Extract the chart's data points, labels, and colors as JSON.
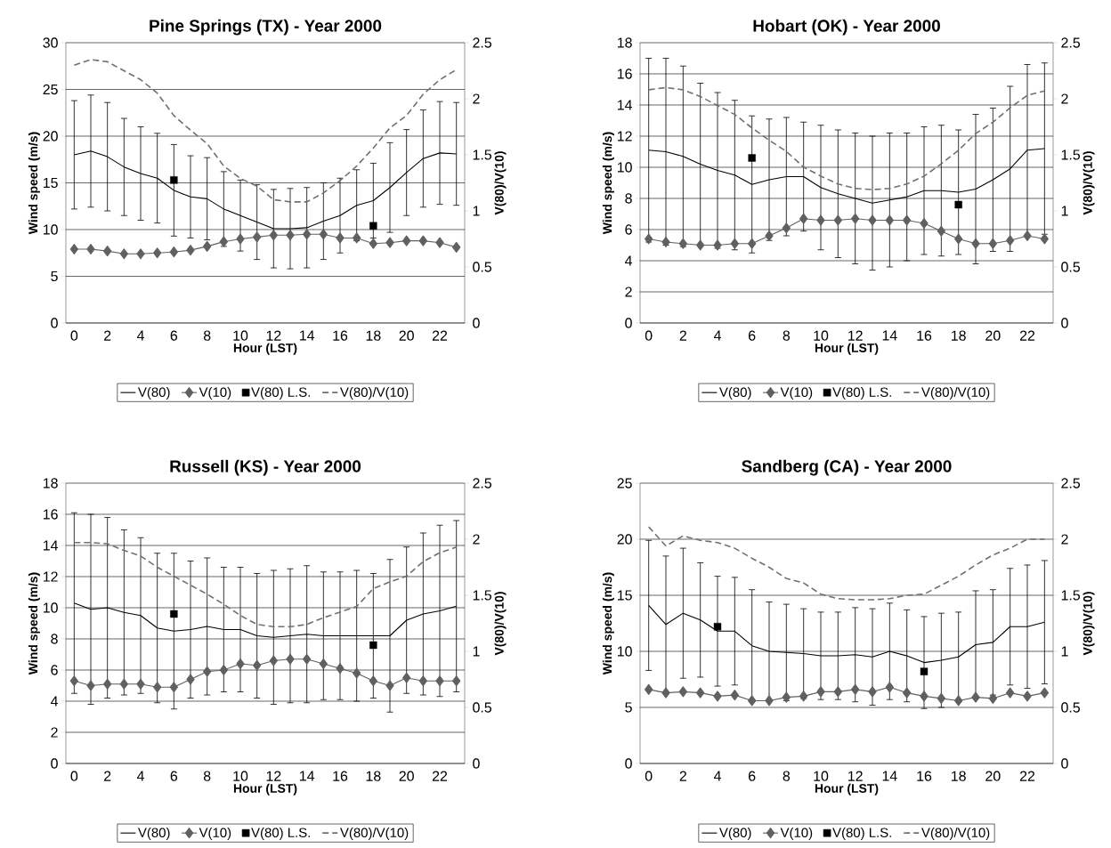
{
  "chart_data": [
    {
      "type": "line",
      "title": "Pine Springs (TX) - Year 2000",
      "xlabel": "Hour (LST)",
      "ylabel": "Wind speed (m/s)",
      "y2label": "V(80)/V(10)",
      "categories": [
        "0",
        null,
        "2",
        null,
        "4",
        null,
        "6",
        null,
        "8",
        null,
        "10",
        null,
        "12",
        null,
        "14",
        null,
        "16",
        null,
        "18",
        null,
        "20",
        null,
        "22",
        null
      ],
      "ylim": [
        0,
        30
      ],
      "yticks": [
        0,
        5,
        10,
        15,
        20,
        25,
        30
      ],
      "y2lim": [
        0,
        2.5
      ],
      "y2ticks": [
        0,
        0.5,
        1,
        1.5,
        2,
        2.5
      ],
      "grid": "y",
      "legend": "bottom",
      "series": [
        {
          "name": "V(80)",
          "type": "line",
          "color": "#000000",
          "marker": "none",
          "line_style": "solid",
          "values": [
            18.0,
            18.4,
            17.8,
            16.7,
            16.0,
            15.5,
            14.2,
            13.5,
            13.3,
            12.2,
            11.5,
            10.8,
            10.1,
            10.1,
            10.2,
            10.9,
            11.5,
            12.6,
            13.1,
            14.5,
            16.1,
            17.6,
            18.2,
            18.1
          ],
          "errors": [
            5.8,
            6.0,
            5.8,
            5.2,
            5.0,
            4.8,
            4.9,
            4.4,
            4.4,
            4.0,
            3.8,
            4.0,
            4.2,
            4.3,
            4.3,
            4.1,
            4.0,
            3.8,
            4.0,
            4.8,
            4.6,
            5.2,
            5.5,
            5.5
          ]
        },
        {
          "name": "V(10)",
          "type": "line",
          "color": "#606060",
          "marker": "diamond",
          "line_style": "solid",
          "values": [
            7.9,
            7.9,
            7.7,
            7.4,
            7.4,
            7.5,
            7.6,
            7.8,
            8.2,
            8.7,
            9.0,
            9.2,
            9.4,
            9.4,
            9.5,
            9.5,
            9.1,
            9.1,
            8.5,
            8.6,
            8.8,
            8.8,
            8.6,
            8.1
          ]
        },
        {
          "name": "V(80) L.S.",
          "type": "scatter",
          "color": "#000000",
          "marker": "square",
          "values": [
            null,
            null,
            null,
            null,
            null,
            null,
            15.3,
            null,
            null,
            null,
            null,
            null,
            null,
            null,
            null,
            null,
            null,
            null,
            10.4,
            null,
            null,
            null,
            null,
            null
          ]
        },
        {
          "name": "V(80)/V(10)",
          "type": "line",
          "axis": "y2",
          "color": "#707070",
          "marker": "none",
          "line_style": "dashed",
          "values": [
            2.3,
            2.35,
            2.33,
            2.25,
            2.17,
            2.05,
            1.85,
            1.72,
            1.6,
            1.4,
            1.29,
            1.22,
            1.1,
            1.08,
            1.08,
            1.16,
            1.27,
            1.4,
            1.56,
            1.74,
            1.85,
            2.04,
            2.17,
            2.26
          ]
        }
      ]
    },
    {
      "type": "line",
      "title": "Hobart (OK) - Year 2000",
      "xlabel": "Hour (LST)",
      "ylabel": "Wind speed (m/s)",
      "y2label": "V(80)/V(10)",
      "categories": [
        "0",
        null,
        "2",
        null,
        "4",
        null,
        "6",
        null,
        "8",
        null,
        "10",
        null,
        "12",
        null,
        "14",
        null,
        "16",
        null,
        "18",
        null,
        "20",
        null,
        "22",
        null
      ],
      "ylim": [
        0,
        18
      ],
      "yticks": [
        0,
        2,
        4,
        6,
        8,
        10,
        12,
        14,
        16,
        18
      ],
      "y2lim": [
        0,
        2.5
      ],
      "y2ticks": [
        0,
        0.5,
        1,
        1.5,
        2,
        2.5
      ],
      "grid": "y",
      "legend": "bottom",
      "series": [
        {
          "name": "V(80)",
          "type": "line",
          "color": "#000000",
          "marker": "none",
          "line_style": "solid",
          "values": [
            11.1,
            11.0,
            10.7,
            10.2,
            9.8,
            9.5,
            8.9,
            9.2,
            9.4,
            9.4,
            8.7,
            8.3,
            8.0,
            7.7,
            7.9,
            8.1,
            8.5,
            8.5,
            8.4,
            8.6,
            9.2,
            9.9,
            11.1,
            11.2
          ],
          "errors": [
            5.9,
            6.0,
            5.8,
            5.2,
            5.0,
            4.8,
            4.4,
            3.9,
            3.8,
            3.5,
            4.0,
            4.1,
            4.2,
            4.3,
            4.3,
            4.1,
            4.1,
            4.2,
            4.0,
            4.8,
            4.6,
            5.3,
            5.5,
            5.5
          ]
        },
        {
          "name": "V(10)",
          "type": "line",
          "color": "#606060",
          "marker": "diamond",
          "line_style": "solid",
          "values": [
            5.4,
            5.2,
            5.1,
            5.0,
            5.0,
            5.1,
            5.1,
            5.6,
            6.1,
            6.7,
            6.6,
            6.6,
            6.7,
            6.6,
            6.6,
            6.6,
            6.4,
            5.9,
            5.4,
            5.1,
            5.1,
            5.3,
            5.6,
            5.4
          ]
        },
        {
          "name": "V(80) L.S.",
          "type": "scatter",
          "color": "#000000",
          "marker": "square",
          "values": [
            null,
            null,
            null,
            null,
            null,
            null,
            10.6,
            null,
            null,
            null,
            null,
            null,
            null,
            null,
            null,
            null,
            null,
            null,
            7.6,
            null,
            null,
            null,
            null,
            null
          ]
        },
        {
          "name": "V(80)/V(10)",
          "type": "line",
          "axis": "y2",
          "color": "#707070",
          "marker": "none",
          "line_style": "dashed",
          "values": [
            2.08,
            2.1,
            2.08,
            2.02,
            1.94,
            1.86,
            1.74,
            1.63,
            1.53,
            1.39,
            1.31,
            1.24,
            1.2,
            1.19,
            1.2,
            1.24,
            1.31,
            1.42,
            1.54,
            1.69,
            1.79,
            1.92,
            2.03,
            2.07
          ]
        }
      ]
    },
    {
      "type": "line",
      "title": "Russell (KS) - Year 2000",
      "xlabel": "Hour (LST)",
      "ylabel": "Wind speed (m/s)",
      "y2label": "V(80)/V(10)",
      "categories": [
        "0",
        null,
        "2",
        null,
        "4",
        null,
        "6",
        null,
        "8",
        null,
        "10",
        null,
        "12",
        null,
        "14",
        null,
        "16",
        null,
        "18",
        null,
        "20",
        null,
        "22",
        null
      ],
      "ylim": [
        0,
        18
      ],
      "yticks": [
        0,
        2,
        4,
        6,
        8,
        10,
        12,
        14,
        16,
        18
      ],
      "y2lim": [
        0,
        2.5
      ],
      "y2ticks": [
        0,
        0.5,
        1,
        1.5,
        2,
        2.5
      ],
      "grid": "y",
      "legend": "bottom",
      "series": [
        {
          "name": "V(80)",
          "type": "line",
          "color": "#000000",
          "marker": "none",
          "line_style": "solid",
          "values": [
            10.3,
            9.9,
            10.0,
            9.7,
            9.5,
            8.7,
            8.5,
            8.6,
            8.8,
            8.6,
            8.6,
            8.2,
            8.1,
            8.2,
            8.3,
            8.2,
            8.2,
            8.2,
            8.2,
            8.2,
            9.2,
            9.6,
            9.8,
            10.1
          ],
          "errors": [
            5.8,
            6.1,
            5.8,
            5.3,
            5.0,
            4.8,
            5.0,
            4.4,
            4.4,
            4.0,
            4.0,
            4.0,
            4.3,
            4.3,
            4.4,
            4.1,
            4.1,
            4.2,
            4.0,
            4.9,
            4.7,
            5.2,
            5.5,
            5.5
          ]
        },
        {
          "name": "V(10)",
          "type": "line",
          "color": "#606060",
          "marker": "diamond",
          "line_style": "solid",
          "values": [
            5.3,
            5.0,
            5.1,
            5.1,
            5.1,
            4.9,
            4.9,
            5.4,
            5.9,
            6.0,
            6.4,
            6.3,
            6.6,
            6.7,
            6.7,
            6.4,
            6.1,
            5.8,
            5.3,
            5.0,
            5.5,
            5.3,
            5.3,
            5.3
          ]
        },
        {
          "name": "V(80) L.S.",
          "type": "scatter",
          "color": "#000000",
          "marker": "square",
          "values": [
            null,
            null,
            null,
            null,
            null,
            null,
            9.6,
            null,
            null,
            null,
            null,
            null,
            null,
            null,
            null,
            null,
            null,
            null,
            7.6,
            null,
            null,
            null,
            null,
            null
          ]
        },
        {
          "name": "V(80)/V(10)",
          "type": "line",
          "axis": "y2",
          "color": "#707070",
          "marker": "none",
          "line_style": "dashed",
          "values": [
            1.97,
            1.97,
            1.96,
            1.9,
            1.85,
            1.75,
            1.67,
            1.59,
            1.51,
            1.42,
            1.32,
            1.24,
            1.22,
            1.22,
            1.24,
            1.3,
            1.35,
            1.4,
            1.56,
            1.62,
            1.67,
            1.8,
            1.88,
            1.93
          ]
        }
      ]
    },
    {
      "type": "line",
      "title": "Sandberg (CA) - Year 2000",
      "xlabel": "Hour (LST)",
      "ylabel": "Wind speed (m/s)",
      "y2label": "V(80)/V(10)",
      "categories": [
        "0",
        null,
        "2",
        null,
        "4",
        null,
        "6",
        null,
        "8",
        null,
        "10",
        null,
        "12",
        null,
        "14",
        null,
        "16",
        null,
        "18",
        null,
        "20",
        null,
        "22",
        null
      ],
      "ylim": [
        0,
        25
      ],
      "yticks": [
        0,
        5,
        10,
        15,
        20,
        25
      ],
      "y2lim": [
        0,
        2.5
      ],
      "y2ticks": [
        0,
        0.5,
        1,
        1.5,
        2,
        2.5
      ],
      "grid": "y",
      "legend": "bottom",
      "series": [
        {
          "name": "V(80)",
          "type": "line",
          "color": "#000000",
          "marker": "none",
          "line_style": "solid",
          "values": [
            14.1,
            12.4,
            13.4,
            12.8,
            11.8,
            11.8,
            10.5,
            10.0,
            9.9,
            9.8,
            9.6,
            9.6,
            9.7,
            9.5,
            10.0,
            9.6,
            9.0,
            9.2,
            9.5,
            10.6,
            10.8,
            12.2,
            12.2,
            12.6
          ],
          "errors": [
            5.8,
            6.1,
            5.8,
            5.1,
            4.9,
            4.8,
            5.0,
            4.4,
            4.3,
            4.0,
            3.9,
            3.9,
            4.2,
            4.3,
            4.3,
            4.1,
            4.1,
            4.2,
            4.0,
            4.8,
            4.7,
            5.2,
            5.5,
            5.5
          ]
        },
        {
          "name": "V(10)",
          "type": "line",
          "color": "#606060",
          "marker": "diamond",
          "line_style": "solid",
          "values": [
            6.6,
            6.3,
            6.4,
            6.3,
            6.0,
            6.1,
            5.6,
            5.6,
            5.9,
            6.0,
            6.4,
            6.4,
            6.6,
            6.4,
            6.8,
            6.3,
            6.0,
            5.8,
            5.6,
            5.9,
            5.8,
            6.3,
            6.0,
            6.3
          ]
        },
        {
          "name": "V(80) L.S.",
          "type": "scatter",
          "color": "#000000",
          "marker": "square",
          "values": [
            null,
            null,
            null,
            null,
            12.2,
            null,
            null,
            null,
            null,
            null,
            null,
            null,
            null,
            null,
            null,
            null,
            8.2,
            null,
            null,
            null,
            null,
            null,
            null,
            null
          ]
        },
        {
          "name": "V(80)/V(10)",
          "type": "line",
          "axis": "y2",
          "color": "#707070",
          "marker": "none",
          "line_style": "dashed",
          "values": [
            2.11,
            1.94,
            2.03,
            1.99,
            1.97,
            1.92,
            1.83,
            1.75,
            1.65,
            1.61,
            1.51,
            1.47,
            1.46,
            1.46,
            1.47,
            1.5,
            1.51,
            1.59,
            1.67,
            1.77,
            1.86,
            1.92,
            2.0,
            2.0
          ]
        }
      ]
    }
  ]
}
